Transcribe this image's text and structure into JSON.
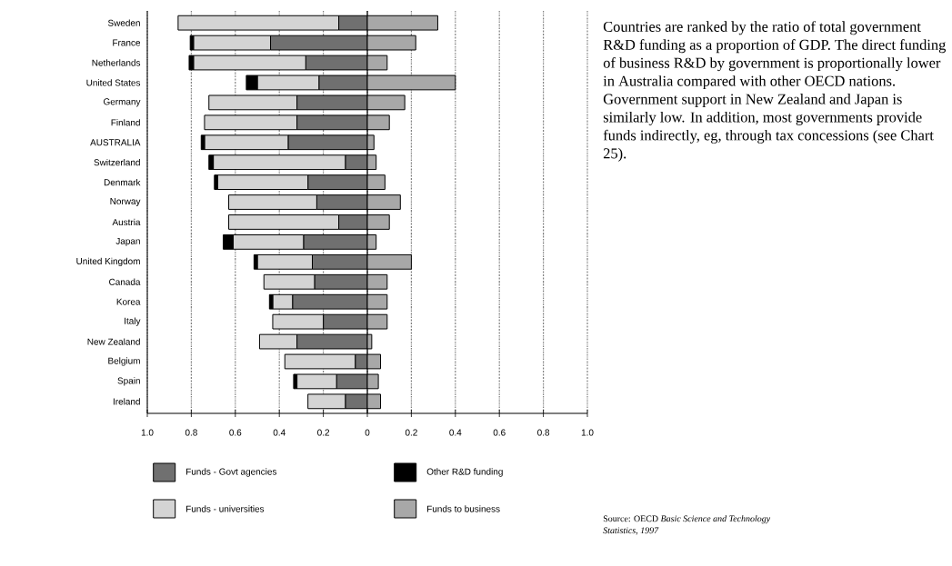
{
  "chart_data": {
    "type": "bar",
    "orientation": "horizontal",
    "stacked": true,
    "categories": [
      "Sweden",
      "France",
      "Netherlands",
      "United States",
      "Germany",
      "Finland",
      "AUSTRALIA",
      "Switzerland",
      "Denmark",
      "Norway",
      "Austria",
      "Japan",
      "United Kingdom",
      "Canada",
      "Korea",
      "Italy",
      "New Zealand",
      "Belgium",
      "Spain",
      "Ireland"
    ],
    "series": [
      {
        "name": "Funds - Govt agencies",
        "color": "#707070",
        "values": [
          -0.13,
          -0.44,
          -0.28,
          -0.22,
          -0.32,
          -0.32,
          -0.36,
          -0.1,
          -0.27,
          -0.23,
          -0.13,
          -0.29,
          -0.25,
          -0.24,
          -0.34,
          -0.2,
          -0.32,
          -0.055,
          -0.14,
          -0.1
        ]
      },
      {
        "name": "Funds - universities",
        "color": "#d4d4d4",
        "values": [
          -0.73,
          -0.35,
          -0.51,
          -0.28,
          -0.4,
          -0.42,
          -0.38,
          -0.6,
          -0.41,
          -0.4,
          -0.5,
          -0.32,
          -0.25,
          -0.23,
          -0.09,
          -0.23,
          -0.17,
          -0.32,
          -0.18,
          -0.17
        ]
      },
      {
        "name": "Other R&D funding",
        "color": "#000000",
        "values": [
          null,
          -0.015,
          -0.02,
          -0.05,
          null,
          null,
          -0.015,
          -0.02,
          -0.015,
          null,
          null,
          -0.045,
          -0.015,
          null,
          -0.015,
          null,
          null,
          null,
          -0.015,
          null
        ]
      },
      {
        "name": "Funds to business",
        "color": "#a8a8a8",
        "values": [
          0.32,
          0.22,
          0.09,
          0.4,
          0.17,
          0.1,
          0.03,
          0.04,
          0.08,
          0.15,
          0.1,
          0.04,
          0.2,
          0.09,
          0.09,
          0.09,
          0.02,
          0.06,
          0.05,
          0.06
        ]
      }
    ],
    "xlim": [
      -1,
      1
    ],
    "xticks": [
      {
        "value": -1,
        "label": "1.0"
      },
      {
        "value": -0.8,
        "label": "0.8"
      },
      {
        "value": -0.6,
        "label": "0.6"
      },
      {
        "value": -0.4,
        "label": "0.4"
      },
      {
        "value": -0.2,
        "label": "0.2"
      },
      0,
      0.2,
      0.4,
      0.6,
      0.8,
      {
        "value": 1,
        "label": "1.0"
      }
    ],
    "grid": "x",
    "legend": "bottom",
    "annotations": [
      "Countries are ranked by the ratio of total government R&D funding as a proportion of GDP. The direct funding of business R&D by government is proportionally lower in Australia compared with other OECD nations. Government support in New Zealand and Japan is similarly low.  In addition, most governments provide funds indirectly, eg, through tax concessions (see Chart 25).",
      "Source: OECD *Basic Science and Technology Statistics, 1997*"
    ]
  }
}
